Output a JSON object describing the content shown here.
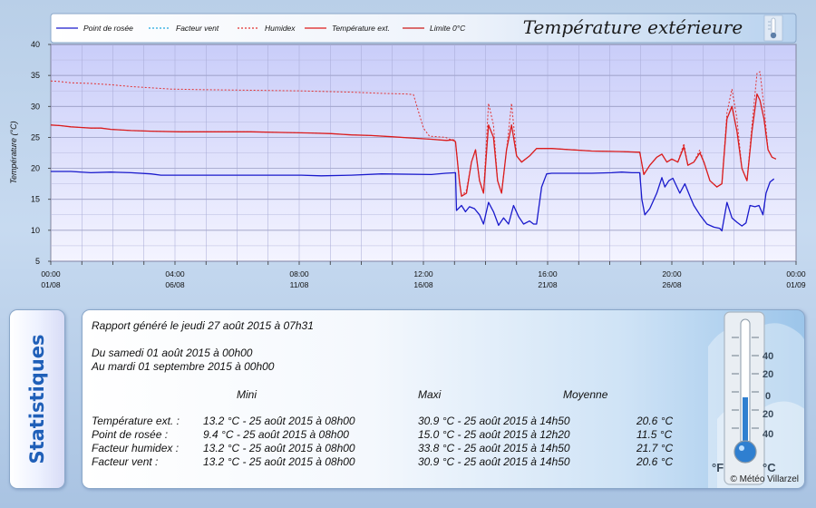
{
  "chart_data": {
    "type": "line",
    "title": "Température extérieure",
    "ylabel": "Température (°C)",
    "ylim": [
      5,
      40
    ],
    "y_ticks": [
      5,
      10,
      15,
      20,
      25,
      30,
      35,
      40
    ],
    "x_range_hours": [
      0,
      744
    ],
    "x_ticks": [
      {
        "t": 0,
        "time": "00:00",
        "date": "01/08"
      },
      {
        "t": 124,
        "time": "04:00",
        "date": "06/08"
      },
      {
        "t": 248,
        "time": "08:00",
        "date": "11/08"
      },
      {
        "t": 372,
        "time": "12:00",
        "date": "16/08"
      },
      {
        "t": 496,
        "time": "16:00",
        "date": "21/08"
      },
      {
        "t": 620,
        "time": "20:00",
        "date": "26/08"
      },
      {
        "t": 744,
        "time": "00:00",
        "date": "01/09"
      }
    ],
    "grid": true,
    "legend_position": "top",
    "series": [
      {
        "name": "Point de rosée",
        "color": "#1a1acc",
        "style": "solid",
        "points": [
          [
            0,
            19.5
          ],
          [
            20,
            19.5
          ],
          [
            40,
            19.3
          ],
          [
            60,
            19.4
          ],
          [
            80,
            19.3
          ],
          [
            100,
            19.1
          ],
          [
            110,
            18.9
          ],
          [
            160,
            18.9
          ],
          [
            220,
            18.9
          ],
          [
            250,
            18.9
          ],
          [
            270,
            18.8
          ],
          [
            300,
            18.9
          ],
          [
            330,
            19.1
          ],
          [
            380,
            19.0
          ],
          [
            394,
            19.2
          ],
          [
            404,
            19.3
          ],
          [
            405,
            13.2
          ],
          [
            410,
            14.0
          ],
          [
            414,
            13.0
          ],
          [
            418,
            13.8
          ],
          [
            423,
            13.5
          ],
          [
            428,
            12.5
          ],
          [
            432,
            11.0
          ],
          [
            437,
            14.5
          ],
          [
            442,
            13.0
          ],
          [
            447,
            10.8
          ],
          [
            452,
            12.0
          ],
          [
            457,
            11.0
          ],
          [
            462,
            14.0
          ],
          [
            467,
            12.2
          ],
          [
            472,
            11.0
          ],
          [
            478,
            11.5
          ],
          [
            482,
            11.0
          ],
          [
            485,
            11.0
          ],
          [
            490,
            17.0
          ],
          [
            495,
            19.1
          ],
          [
            500,
            19.2
          ],
          [
            540,
            19.2
          ],
          [
            560,
            19.3
          ],
          [
            570,
            19.4
          ],
          [
            580,
            19.3
          ],
          [
            588,
            19.3
          ],
          [
            590,
            15.0
          ],
          [
            593,
            12.5
          ],
          [
            598,
            13.5
          ],
          [
            605,
            16.0
          ],
          [
            610,
            18.5
          ],
          [
            613,
            17.0
          ],
          [
            617,
            18.0
          ],
          [
            621,
            18.4
          ],
          [
            628,
            16.0
          ],
          [
            633,
            17.5
          ],
          [
            638,
            15.5
          ],
          [
            642,
            14.0
          ],
          [
            648,
            12.5
          ],
          [
            655,
            11.0
          ],
          [
            662,
            10.5
          ],
          [
            668,
            10.3
          ],
          [
            670,
            9.9
          ],
          [
            675,
            14.5
          ],
          [
            680,
            12.0
          ],
          [
            685,
            11.3
          ],
          [
            690,
            10.7
          ],
          [
            694,
            11.2
          ],
          [
            698,
            14.0
          ],
          [
            703,
            13.8
          ],
          [
            707,
            14.0
          ],
          [
            711,
            12.5
          ],
          [
            714,
            16.0
          ],
          [
            718,
            17.8
          ],
          [
            722,
            18.3
          ]
        ]
      },
      {
        "name": "Facteur vent",
        "color": "#20a8e0",
        "style": "dotted",
        "points": [
          [
            0,
            27.0
          ],
          [
            10,
            26.9
          ],
          [
            20,
            26.7
          ],
          [
            30,
            26.6
          ],
          [
            40,
            26.5
          ],
          [
            50,
            26.5
          ],
          [
            60,
            26.3
          ],
          [
            80,
            26.1
          ],
          [
            100,
            26.0
          ],
          [
            130,
            25.9
          ],
          [
            160,
            25.9
          ],
          [
            200,
            25.9
          ],
          [
            230,
            25.8
          ],
          [
            260,
            25.7
          ],
          [
            280,
            25.6
          ],
          [
            300,
            25.4
          ],
          [
            320,
            25.3
          ],
          [
            340,
            25.1
          ],
          [
            360,
            24.9
          ],
          [
            380,
            24.7
          ],
          [
            395,
            24.5
          ],
          [
            402,
            24.6
          ],
          [
            404,
            24.3
          ],
          [
            408,
            17.8
          ],
          [
            410,
            15.5
          ],
          [
            415,
            16.0
          ],
          [
            420,
            21.0
          ],
          [
            424,
            23.0
          ],
          [
            428,
            18.0
          ],
          [
            432,
            16.0
          ],
          [
            437,
            27.0
          ],
          [
            442,
            25.0
          ],
          [
            446,
            18.0
          ],
          [
            450,
            16.0
          ],
          [
            455,
            23.0
          ],
          [
            460,
            27.0
          ],
          [
            465,
            22.0
          ],
          [
            470,
            21.0
          ],
          [
            478,
            22.0
          ],
          [
            485,
            23.2
          ],
          [
            500,
            23.2
          ],
          [
            520,
            23.0
          ],
          [
            540,
            22.8
          ],
          [
            570,
            22.7
          ],
          [
            588,
            22.6
          ],
          [
            592,
            19.0
          ],
          [
            598,
            20.5
          ],
          [
            605,
            21.8
          ],
          [
            610,
            22.3
          ],
          [
            615,
            21.0
          ],
          [
            620,
            21.5
          ],
          [
            626,
            21.0
          ],
          [
            632,
            23.5
          ],
          [
            636,
            20.5
          ],
          [
            642,
            21.0
          ],
          [
            648,
            22.5
          ],
          [
            652,
            21.0
          ],
          [
            658,
            18.0
          ],
          [
            665,
            17.0
          ],
          [
            670,
            17.5
          ],
          [
            675,
            28.0
          ],
          [
            680,
            30.0
          ],
          [
            685,
            26.0
          ],
          [
            690,
            20.0
          ],
          [
            695,
            18.0
          ],
          [
            700,
            26.0
          ],
          [
            705,
            32.0
          ],
          [
            708,
            31.0
          ],
          [
            712,
            28.0
          ],
          [
            716,
            23.0
          ],
          [
            720,
            21.8
          ],
          [
            724,
            21.5
          ]
        ]
      },
      {
        "name": "Humidex",
        "color": "#e23030",
        "style": "dotted",
        "points": [
          [
            0,
            34.1
          ],
          [
            10,
            34.0
          ],
          [
            20,
            33.8
          ],
          [
            40,
            33.7
          ],
          [
            60,
            33.5
          ],
          [
            80,
            33.2
          ],
          [
            100,
            33.0
          ],
          [
            120,
            32.8
          ],
          [
            150,
            32.7
          ],
          [
            200,
            32.6
          ],
          [
            250,
            32.5
          ],
          [
            300,
            32.3
          ],
          [
            330,
            32.1
          ],
          [
            355,
            32.0
          ],
          [
            362,
            31.9
          ],
          [
            372,
            26.5
          ],
          [
            378,
            25.2
          ],
          [
            394,
            25.0
          ],
          [
            404,
            24.3
          ],
          [
            408,
            18.0
          ],
          [
            410,
            15.5
          ],
          [
            415,
            16.5
          ],
          [
            420,
            21.0
          ],
          [
            424,
            23.0
          ],
          [
            428,
            18.0
          ],
          [
            432,
            16.0
          ],
          [
            437,
            30.5
          ],
          [
            442,
            27.0
          ],
          [
            446,
            18.0
          ],
          [
            450,
            16.0
          ],
          [
            455,
            23.0
          ],
          [
            460,
            30.5
          ],
          [
            465,
            22.0
          ],
          [
            470,
            21.0
          ],
          [
            478,
            22.0
          ],
          [
            485,
            23.2
          ],
          [
            500,
            23.2
          ],
          [
            520,
            23.0
          ],
          [
            540,
            22.8
          ],
          [
            570,
            22.7
          ],
          [
            588,
            22.6
          ],
          [
            592,
            19.0
          ],
          [
            598,
            20.5
          ],
          [
            605,
            21.8
          ],
          [
            610,
            22.3
          ],
          [
            615,
            21.0
          ],
          [
            620,
            21.5
          ],
          [
            626,
            21.0
          ],
          [
            632,
            24.0
          ],
          [
            636,
            20.5
          ],
          [
            642,
            21.0
          ],
          [
            648,
            23.0
          ],
          [
            652,
            21.0
          ],
          [
            658,
            18.0
          ],
          [
            665,
            17.0
          ],
          [
            670,
            17.5
          ],
          [
            675,
            29.0
          ],
          [
            680,
            32.8
          ],
          [
            685,
            28.0
          ],
          [
            690,
            20.0
          ],
          [
            695,
            18.0
          ],
          [
            700,
            27.0
          ],
          [
            705,
            35.3
          ],
          [
            708,
            35.6
          ],
          [
            712,
            30.0
          ],
          [
            716,
            23.0
          ],
          [
            720,
            21.8
          ],
          [
            724,
            21.5
          ]
        ]
      },
      {
        "name": "Température ext.",
        "color": "#dd1c1c",
        "style": "solid",
        "points": [
          [
            0,
            27.0
          ],
          [
            10,
            26.9
          ],
          [
            20,
            26.7
          ],
          [
            30,
            26.6
          ],
          [
            40,
            26.5
          ],
          [
            50,
            26.5
          ],
          [
            60,
            26.3
          ],
          [
            80,
            26.1
          ],
          [
            100,
            26.0
          ],
          [
            130,
            25.9
          ],
          [
            160,
            25.9
          ],
          [
            200,
            25.9
          ],
          [
            230,
            25.8
          ],
          [
            260,
            25.7
          ],
          [
            280,
            25.6
          ],
          [
            300,
            25.4
          ],
          [
            320,
            25.3
          ],
          [
            340,
            25.1
          ],
          [
            360,
            24.9
          ],
          [
            380,
            24.7
          ],
          [
            395,
            24.5
          ],
          [
            402,
            24.6
          ],
          [
            404,
            24.3
          ],
          [
            408,
            17.8
          ],
          [
            410,
            15.5
          ],
          [
            415,
            16.0
          ],
          [
            420,
            21.0
          ],
          [
            424,
            23.0
          ],
          [
            428,
            18.0
          ],
          [
            432,
            16.0
          ],
          [
            437,
            27.0
          ],
          [
            442,
            25.0
          ],
          [
            446,
            18.0
          ],
          [
            450,
            16.0
          ],
          [
            455,
            23.0
          ],
          [
            460,
            27.0
          ],
          [
            465,
            22.0
          ],
          [
            470,
            21.0
          ],
          [
            478,
            22.0
          ],
          [
            485,
            23.2
          ],
          [
            500,
            23.2
          ],
          [
            520,
            23.0
          ],
          [
            540,
            22.8
          ],
          [
            570,
            22.7
          ],
          [
            588,
            22.6
          ],
          [
            592,
            19.0
          ],
          [
            598,
            20.5
          ],
          [
            605,
            21.8
          ],
          [
            610,
            22.3
          ],
          [
            615,
            21.0
          ],
          [
            620,
            21.5
          ],
          [
            626,
            21.0
          ],
          [
            632,
            23.5
          ],
          [
            636,
            20.5
          ],
          [
            642,
            21.0
          ],
          [
            648,
            22.5
          ],
          [
            652,
            21.0
          ],
          [
            658,
            18.0
          ],
          [
            665,
            17.0
          ],
          [
            670,
            17.5
          ],
          [
            675,
            28.0
          ],
          [
            680,
            30.0
          ],
          [
            685,
            26.0
          ],
          [
            690,
            20.0
          ],
          [
            695,
            18.0
          ],
          [
            700,
            26.0
          ],
          [
            705,
            32.0
          ],
          [
            708,
            31.0
          ],
          [
            712,
            28.0
          ],
          [
            716,
            23.0
          ],
          [
            720,
            21.8
          ],
          [
            724,
            21.5
          ]
        ]
      },
      {
        "name": "Limite 0°C",
        "color": "#cc1a1a",
        "style": "solid",
        "points": []
      }
    ]
  },
  "stats": {
    "side_label": "Statistiques",
    "report_line": "Rapport généré le jeudi 27 août 2015 à 07h31",
    "from_line": "Du samedi 01 août 2015 à 00h00",
    "to_line": "Au mardi 01 septembre 2015 à 00h00",
    "headers": {
      "mini": "Mini",
      "maxi": "Maxi",
      "moyenne": "Moyenne"
    },
    "rows": [
      {
        "label": "Température ext. :",
        "mini": "13.2 °C - 25 août 2015 à 08h00",
        "maxi": "30.9 °C - 25 août 2015 à 14h50",
        "moyenne": "20.6 °C"
      },
      {
        "label": "Point de rosée :",
        "mini": "9.4 °C - 25 août 2015 à 08h00",
        "maxi": "15.0 °C - 25 août 2015 à 12h20",
        "moyenne": "11.5 °C"
      },
      {
        "label": "Facteur humidex :",
        "mini": "13.2 °C - 25 août 2015 à 08h00",
        "maxi": "33.8 °C - 25 août 2015 à 14h50",
        "moyenne": "21.7 °C"
      },
      {
        "label": "Facteur vent :",
        "mini": "13.2 °C - 25 août 2015 à 08h00",
        "maxi": "30.9 °C - 25 août 2015 à 14h50",
        "moyenne": "20.6 °C"
      }
    ],
    "credit": "© Météo Villarzel",
    "thermo_scale": [
      "40",
      "20",
      "0",
      "20",
      "40"
    ],
    "thermo_unit_f": "°F",
    "thermo_unit_c": "°C"
  },
  "colors": {
    "plot_background_top": "#c9cdf9",
    "plot_background_bottom": "#f4f4ff",
    "accent_blue": "#1f5fb8"
  }
}
